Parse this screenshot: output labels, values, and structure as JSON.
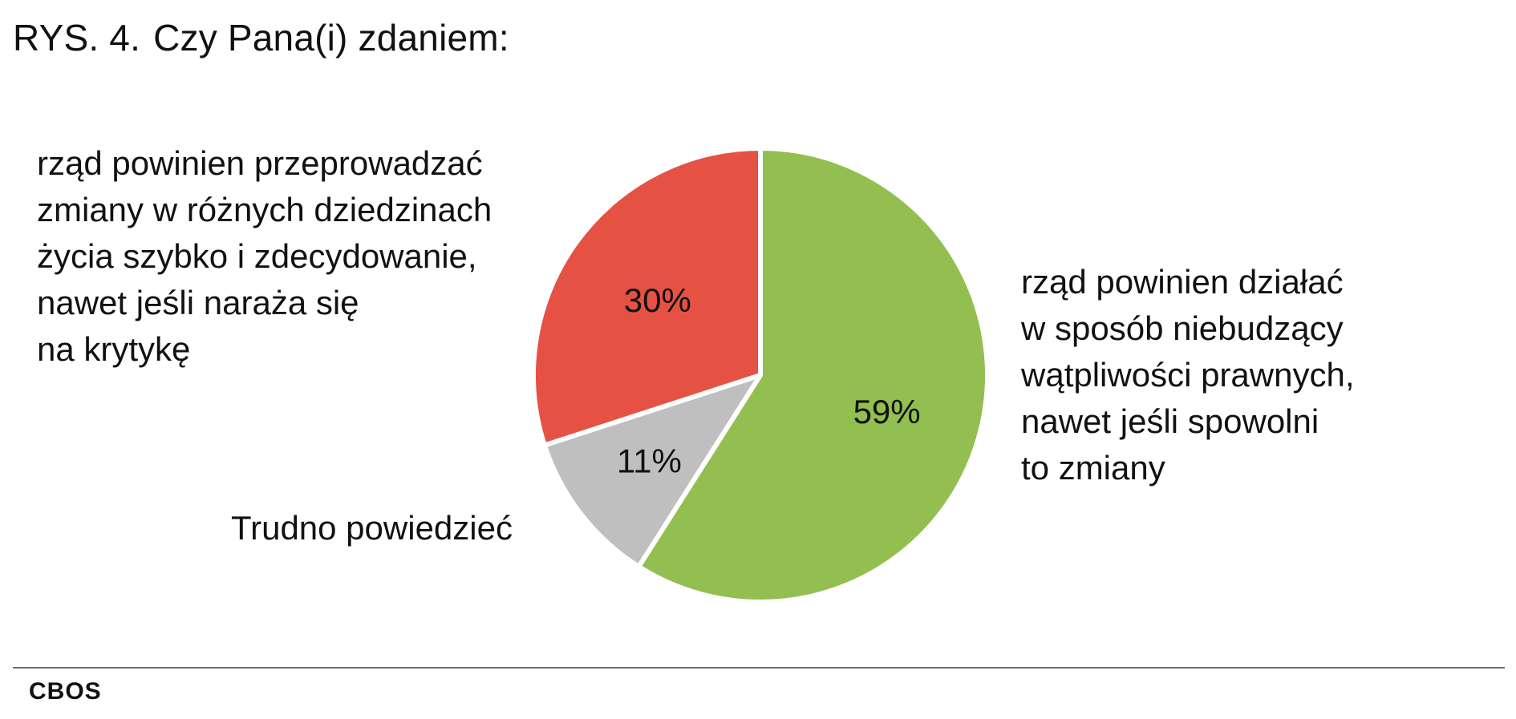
{
  "title": {
    "number": "RYS. 4.",
    "question": "Czy Pana(i) zdaniem:"
  },
  "chart_data": {
    "type": "pie",
    "start_angle_deg": 0,
    "direction": "clockwise",
    "slices": [
      {
        "value": 59,
        "value_label": "59%",
        "color": "#92bf4f",
        "label_lines": [
          "rząd powinien działać",
          "w sposób niebudzący",
          "wątpliwości prawnych,",
          "nawet jeśli spowolni",
          "to zmiany"
        ]
      },
      {
        "value": 11,
        "value_label": "11%",
        "color": "#bfbfbf",
        "label_lines": [
          "Trudno powiedzieć"
        ]
      },
      {
        "value": 30,
        "value_label": "30%",
        "color": "#e55244",
        "label_lines": [
          "rząd powinien przeprowadzać",
          "zmiany w różnych dziedzinach",
          "życia szybko i zdecydowanie,",
          "nawet jeśli naraża się",
          "na krytykę"
        ]
      }
    ]
  },
  "footer": {
    "source": "CBOS"
  }
}
